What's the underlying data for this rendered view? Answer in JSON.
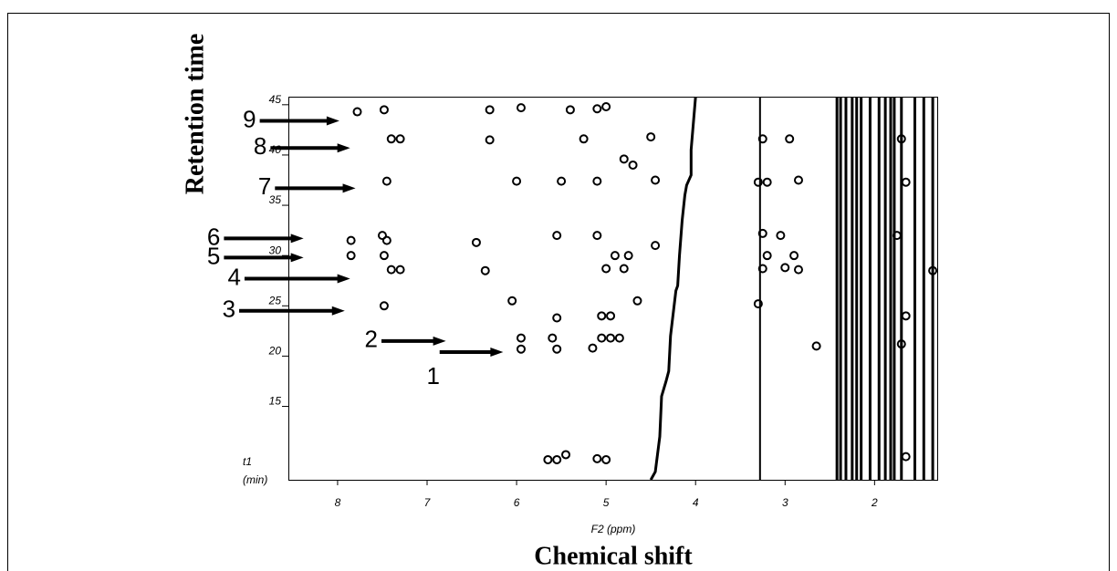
{
  "chart_data": {
    "type": "contour",
    "title": "Retention time",
    "xtitle": "Chemical shift",
    "xlabel": "F2 (ppm)",
    "ylabel": "t1",
    "ylabel_unit": "(min)",
    "xlim": [
      8.55,
      1.3
    ],
    "ylim": [
      7.7,
      45.8
    ],
    "xticks": [
      8,
      7,
      6,
      5,
      4,
      3,
      2
    ],
    "yticks": [
      15,
      20,
      25,
      30,
      35,
      40,
      45
    ],
    "color": "#000000",
    "peaks": {
      "x": [
        7.78,
        7.48,
        6.3,
        5.95,
        5.4,
        5.1,
        5.0,
        7.4,
        7.3,
        6.3,
        5.25,
        4.5,
        3.25,
        2.95,
        1.7,
        7.45,
        6.0,
        5.5,
        5.1,
        4.45,
        3.3,
        3.2,
        2.85,
        1.65,
        4.8,
        4.7,
        7.85,
        7.5,
        7.45,
        6.45,
        5.55,
        5.1,
        4.45,
        3.25,
        3.05,
        1.75,
        7.85,
        7.48,
        4.9,
        4.75,
        3.2,
        2.9,
        7.4,
        7.3,
        6.35,
        5.0,
        4.8,
        3.25,
        3.0,
        2.85,
        1.35,
        7.48,
        6.05,
        5.55,
        5.05,
        4.95,
        1.65,
        4.65,
        3.3,
        5.95,
        5.6,
        5.05,
        4.95,
        4.85,
        5.95,
        5.55,
        5.15,
        2.65,
        1.7,
        5.65,
        5.55,
        5.45,
        5.1,
        5.0,
        1.65
      ],
      "y": [
        44.3,
        44.5,
        44.5,
        44.7,
        44.5,
        44.6,
        44.8,
        41.6,
        41.6,
        41.5,
        41.6,
        41.8,
        41.6,
        41.6,
        41.6,
        37.4,
        37.4,
        37.4,
        37.4,
        37.5,
        37.3,
        37.3,
        37.5,
        37.3,
        39.6,
        39.0,
        31.5,
        32.0,
        31.5,
        31.3,
        32.0,
        32.0,
        31.0,
        32.2,
        32.0,
        32.0,
        30.0,
        30.0,
        30.0,
        30.0,
        30.0,
        30.0,
        28.6,
        28.6,
        28.5,
        28.7,
        28.7,
        28.7,
        28.8,
        28.6,
        28.5,
        25.0,
        25.5,
        23.8,
        24.0,
        24.0,
        24.0,
        25.5,
        25.2,
        21.8,
        21.8,
        21.8,
        21.8,
        21.8,
        20.7,
        20.7,
        20.8,
        21.0,
        21.2,
        9.7,
        9.7,
        10.2,
        9.8,
        9.7,
        10.0
      ]
    },
    "trace": {
      "x": [
        4.5,
        4.45,
        4.4,
        4.38,
        4.33,
        4.3,
        4.28,
        4.22,
        4.2,
        4.18,
        4.15,
        4.12,
        4.1,
        4.05,
        4.05,
        4.0
      ],
      "y": [
        7.7,
        8.5,
        12.0,
        16.0,
        17.5,
        18.5,
        22.0,
        26.5,
        27.0,
        30.0,
        33.5,
        36.0,
        37.0,
        38.0,
        40.5,
        45.8
      ]
    },
    "vertical_lines": [
      3.28,
      2.42,
      2.38,
      2.32,
      2.25,
      2.2,
      2.15,
      2.05,
      1.95,
      1.88,
      1.82,
      1.78,
      1.7,
      1.55,
      1.45,
      1.35
    ],
    "annotations": [
      {
        "text": "1",
        "y": 20.4,
        "x": 6.15,
        "from": 6.86
      },
      {
        "text": "2",
        "y": 21.5,
        "x": 6.79,
        "from": 7.51
      },
      {
        "text": "3",
        "y": 24.5,
        "x": 7.92,
        "from": 9.1
      },
      {
        "text": "4",
        "y": 27.7,
        "x": 7.86,
        "from": 9.04
      },
      {
        "text": "5",
        "y": 29.8,
        "x": 8.38,
        "from": 9.27
      },
      {
        "text": "6",
        "y": 31.7,
        "x": 8.38,
        "from": 9.27
      },
      {
        "text": "7",
        "y": 36.7,
        "x": 7.8,
        "from": 8.7
      },
      {
        "text": "8",
        "y": 40.7,
        "x": 7.86,
        "from": 8.75
      },
      {
        "text": "9",
        "y": 43.4,
        "x": 7.98,
        "from": 8.87
      }
    ]
  }
}
